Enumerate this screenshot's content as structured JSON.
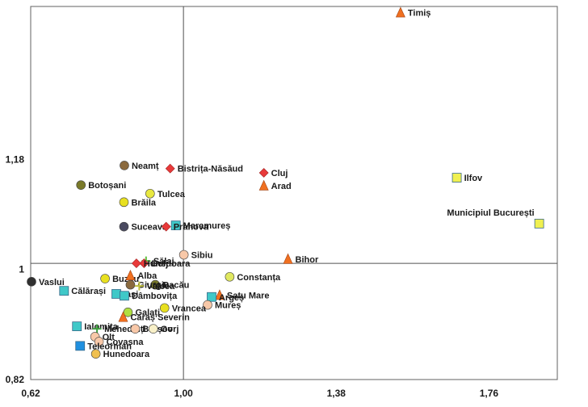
{
  "chart_data": {
    "type": "scatter",
    "title": "",
    "xlabel": "",
    "ylabel": "",
    "xlim": [
      0.62,
      1.93
    ],
    "ylim": [
      0.82,
      1.43
    ],
    "x_crosshair": 1.0,
    "y_crosshair": 1.01,
    "x_ticks": [
      {
        "value": 0.62,
        "label": "0,62"
      },
      {
        "value": 1.0,
        "label": "1,00"
      },
      {
        "value": 1.38,
        "label": "1,38"
      },
      {
        "value": 1.76,
        "label": "1,76"
      }
    ],
    "y_ticks": [
      {
        "value": 1.18,
        "label": "1,18"
      },
      {
        "value": 1.0,
        "label": "1"
      },
      {
        "value": 0.82,
        "label": "0,82"
      }
    ],
    "grid": false,
    "legend": "none",
    "points": [
      {
        "name": "Timiș",
        "x": 1.54,
        "y": 1.42,
        "marker": "triangle",
        "color": "#f07020"
      },
      {
        "name": "Neamț",
        "x": 0.853,
        "y": 1.17,
        "marker": "circle",
        "color": "#8b6a3e"
      },
      {
        "name": "Bistrița-Năsăud",
        "x": 0.967,
        "y": 1.165,
        "marker": "diamond",
        "color": "#e83a3a"
      },
      {
        "name": "Cluj",
        "x": 1.2,
        "y": 1.158,
        "marker": "diamond",
        "color": "#e83a3a"
      },
      {
        "name": "Ilfov",
        "x": 1.68,
        "y": 1.15,
        "marker": "square",
        "color": "#f0f050"
      },
      {
        "name": "Botoșani",
        "x": 0.745,
        "y": 1.138,
        "marker": "circle",
        "color": "#7a7a2a"
      },
      {
        "name": "Arad",
        "x": 1.2,
        "y": 1.137,
        "marker": "triangle",
        "color": "#f07020"
      },
      {
        "name": "Tulcea",
        "x": 0.917,
        "y": 1.124,
        "marker": "circle",
        "color": "#e8e840"
      },
      {
        "name": "Brăila",
        "x": 0.852,
        "y": 1.11,
        "marker": "circle",
        "color": "#e8e020"
      },
      {
        "name": "Municipiul București",
        "x": 1.885,
        "y": 1.075,
        "marker": "square",
        "color": "#f0f050"
      },
      {
        "name": "Maramureș",
        "x": 0.981,
        "y": 1.072,
        "marker": "square",
        "color": "#40c8c8"
      },
      {
        "name": "Suceava",
        "x": 0.852,
        "y": 1.07,
        "marker": "circle",
        "color": "#4a4a60"
      },
      {
        "name": "Prahova",
        "x": 0.957,
        "y": 1.07,
        "marker": "diamond",
        "color": "#e83a3a"
      },
      {
        "name": "Sibiu",
        "x": 1.001,
        "y": 1.024,
        "marker": "circle",
        "color": "#f8c8a8"
      },
      {
        "name": "Bihor",
        "x": 1.26,
        "y": 1.017,
        "marker": "triangle",
        "color": "#f07020"
      },
      {
        "name": "Sălaj",
        "x": 0.907,
        "y": 1.014,
        "marker": "cross",
        "color": "#60c040"
      },
      {
        "name": "Dolj",
        "x": 0.902,
        "y": 1.01,
        "marker": "diamond",
        "color": "#e83a3a"
      },
      {
        "name": "Hunedoara",
        "x": 0.883,
        "y": 1.01,
        "marker": "diamond",
        "color": "#e83a3a"
      },
      {
        "name": "Vaslui",
        "x": 0.622,
        "y": 0.98,
        "marker": "circle",
        "color": "#303030"
      },
      {
        "name": "Buzău",
        "x": 0.805,
        "y": 0.985,
        "marker": "circle",
        "color": "#e8e020"
      },
      {
        "name": "Alba",
        "x": 0.868,
        "y": 0.99,
        "marker": "triangle",
        "color": "#f07020"
      },
      {
        "name": "Constanța",
        "x": 1.115,
        "y": 0.988,
        "marker": "circle",
        "color": "#e0e860"
      },
      {
        "name": "Bacău",
        "x": 0.93,
        "y": 0.975,
        "marker": "circle",
        "color": "#7a7a2a"
      },
      {
        "name": "Giurgiu",
        "x": 0.868,
        "y": 0.975,
        "marker": "circle",
        "color": "#8b6a3e"
      },
      {
        "name": "Vâlcea",
        "x": 0.89,
        "y": 0.973,
        "marker": "cross",
        "color": "#c0c040"
      },
      {
        "name": "Călărași",
        "x": 0.703,
        "y": 0.965,
        "marker": "square",
        "color": "#40c8c8"
      },
      {
        "name": "Iași",
        "x": 0.833,
        "y": 0.96,
        "marker": "square",
        "color": "#40c8c8"
      },
      {
        "name": "Dâmbovița",
        "x": 0.853,
        "y": 0.957,
        "marker": "square",
        "color": "#40c8c8"
      },
      {
        "name": "Satu Mare",
        "x": 1.09,
        "y": 0.958,
        "marker": "triangle",
        "color": "#f07020"
      },
      {
        "name": "Argeș",
        "x": 1.07,
        "y": 0.955,
        "marker": "square",
        "color": "#40c8c8"
      },
      {
        "name": "Mureș",
        "x": 1.06,
        "y": 0.942,
        "marker": "circle",
        "color": "#f8c8a8"
      },
      {
        "name": "Vrancea",
        "x": 0.953,
        "y": 0.937,
        "marker": "circle",
        "color": "#e8e020"
      },
      {
        "name": "Galați",
        "x": 0.862,
        "y": 0.93,
        "marker": "circle",
        "color": "#b0e040"
      },
      {
        "name": "Caraș Severin",
        "x": 0.85,
        "y": 0.922,
        "marker": "triangle",
        "color": "#f07020"
      },
      {
        "name": "Ialomița",
        "x": 0.735,
        "y": 0.907,
        "marker": "square",
        "color": "#40c8c8"
      },
      {
        "name": "Mehedinți",
        "x": 0.785,
        "y": 0.903,
        "marker": "cross",
        "color": "#40a040"
      },
      {
        "name": "Brașov",
        "x": 0.88,
        "y": 0.903,
        "marker": "circle",
        "color": "#f8c8a8"
      },
      {
        "name": "Gorj",
        "x": 0.925,
        "y": 0.903,
        "marker": "circle",
        "color": "#f8f0c8"
      },
      {
        "name": "Olt",
        "x": 0.78,
        "y": 0.89,
        "marker": "circle",
        "color": "#f8c8a8"
      },
      {
        "name": "Covasna",
        "x": 0.79,
        "y": 0.882,
        "marker": "circle",
        "color": "#f8c8a8"
      },
      {
        "name": "Teleorman",
        "x": 0.743,
        "y": 0.875,
        "marker": "square",
        "color": "#2090e0"
      },
      {
        "name": "Hunedoara",
        "x": 0.782,
        "y": 0.862,
        "marker": "circle",
        "color": "#f0c050"
      }
    ]
  }
}
